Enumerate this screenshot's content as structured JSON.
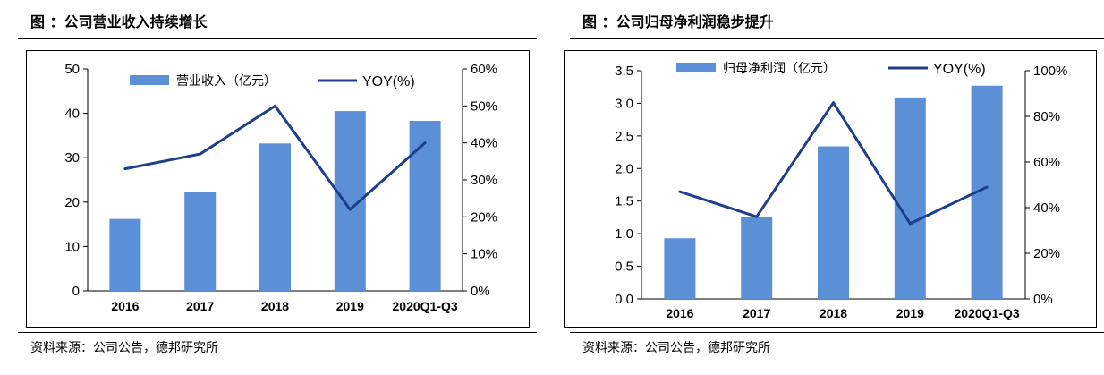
{
  "panels": [
    {
      "title": "图  ：公司营业收入持续增长",
      "source": "资料来源：公司公告，德邦研究所",
      "chart_data": {
        "type": "bar",
        "categories": [
          "2016",
          "2017",
          "2018",
          "2019",
          "2020Q1-Q3"
        ],
        "series": [
          {
            "name": "营业收入（亿元）",
            "type": "bar",
            "axis": "left",
            "values": [
              16.2,
              22.2,
              33.2,
              40.5,
              38.3
            ]
          },
          {
            "name": "YOY(%)",
            "type": "line",
            "axis": "right",
            "values": [
              33,
              37,
              50,
              22,
              40
            ]
          }
        ],
        "ylim_left": [
          0,
          50
        ],
        "yticks_left": [
          "0",
          "10",
          "20",
          "30",
          "40",
          "50"
        ],
        "ylim_right": [
          0,
          60
        ],
        "yticks_right": [
          "0%",
          "10%",
          "20%",
          "30%",
          "40%",
          "50%",
          "60%"
        ],
        "legend": "top",
        "grid": false,
        "colors": {
          "bar": "#5b8fd6",
          "line": "#1f3f8c"
        }
      }
    },
    {
      "title": "图  ：公司归母净利润稳步提升",
      "source": "资料来源：公司公告，德邦研究所",
      "chart_data": {
        "type": "bar",
        "categories": [
          "2016",
          "2017",
          "2018",
          "2019",
          "2020Q1-Q3"
        ],
        "series": [
          {
            "name": "归母净利润（亿元）",
            "type": "bar",
            "axis": "left",
            "values": [
              0.93,
              1.25,
              2.34,
              3.09,
              3.27
            ]
          },
          {
            "name": "YOY(%)",
            "type": "line",
            "axis": "right",
            "values": [
              47,
              36,
              86,
              33,
              49
            ]
          }
        ],
        "ylim_left": [
          0,
          3.5
        ],
        "yticks_left": [
          "0.0",
          "0.5",
          "1.0",
          "1.5",
          "2.0",
          "2.5",
          "3.0",
          "3.5"
        ],
        "ylim_right": [
          0,
          100
        ],
        "yticks_right": [
          "0%",
          "20%",
          "40%",
          "60%",
          "80%",
          "100%"
        ],
        "legend": "top",
        "grid": false,
        "colors": {
          "bar": "#5b8fd6",
          "line": "#1f3f8c"
        }
      }
    }
  ]
}
